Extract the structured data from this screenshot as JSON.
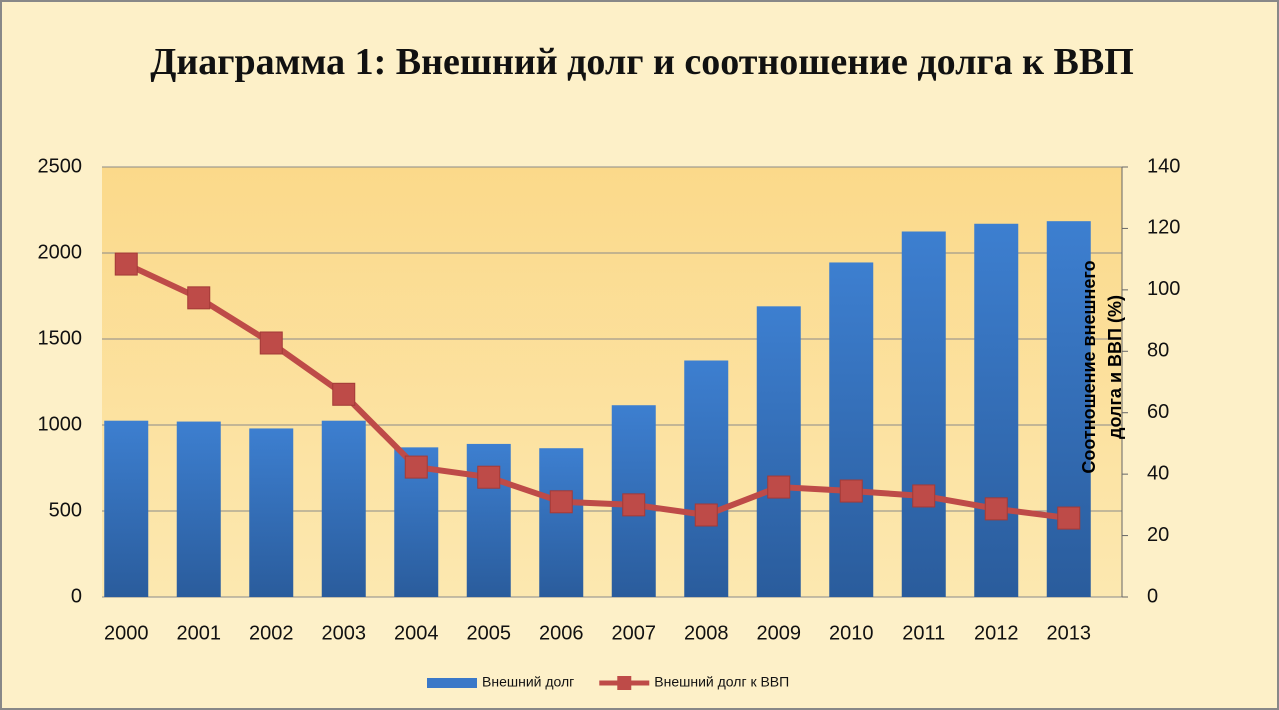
{
  "chart_data": {
    "type": "bar_line",
    "title": "Диаграмма 1: Внешний долг и соотношение долга к ВВП",
    "y2_label": "Соотношение внешнего долга и ВВП  (%)",
    "categories": [
      "2000",
      "2001",
      "2002",
      "2003",
      "2004",
      "2005",
      "2006",
      "2007",
      "2008",
      "2009",
      "2010",
      "2011",
      "2012",
      "2013"
    ],
    "series": [
      {
        "name": "Внешний долг",
        "type": "bar",
        "color": "#3a78c8",
        "axis": "y",
        "values": [
          1025,
          1020,
          980,
          1025,
          870,
          890,
          865,
          1115,
          1375,
          1690,
          1945,
          2125,
          2170,
          2185
        ]
      },
      {
        "name": "Внешний долг к  ВВП",
        "type": "line",
        "color": "#be4b48",
        "axis": "y2",
        "values": [
          108.4,
          97.4,
          82.7,
          66,
          42.3,
          39,
          31,
          30,
          26.7,
          35.8,
          34.5,
          32.9,
          28.7,
          25.7
        ]
      }
    ],
    "ylim": [
      0,
      2500
    ],
    "yticks": [
      0,
      500,
      1000,
      1500,
      2000,
      2500
    ],
    "y2lim": [
      0,
      140
    ],
    "y2ticks": [
      0,
      20,
      40,
      60,
      80,
      100,
      120,
      140
    ],
    "grid": true,
    "legend": "bottom"
  }
}
